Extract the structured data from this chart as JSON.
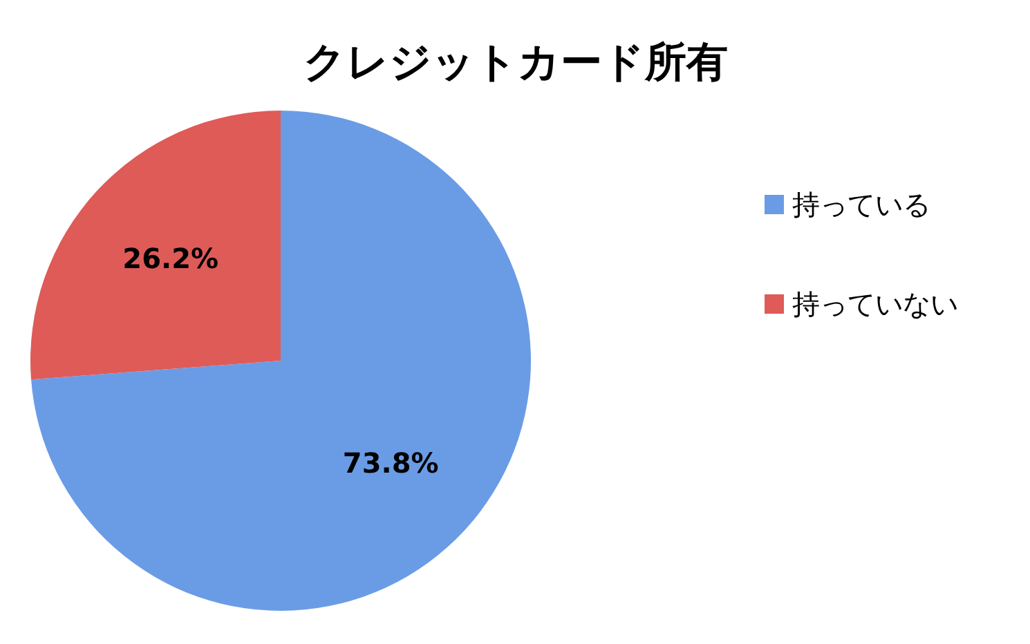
{
  "chart_data": {
    "type": "pie",
    "title": "クレジットカード所有",
    "categories": [
      "持っている",
      "持っていない"
    ],
    "values": [
      73.8,
      26.2
    ],
    "colors": [
      "#6a9ce6",
      "#de5b57"
    ],
    "value_labels": [
      "73.8%",
      "26.2%"
    ],
    "legend": "right"
  }
}
